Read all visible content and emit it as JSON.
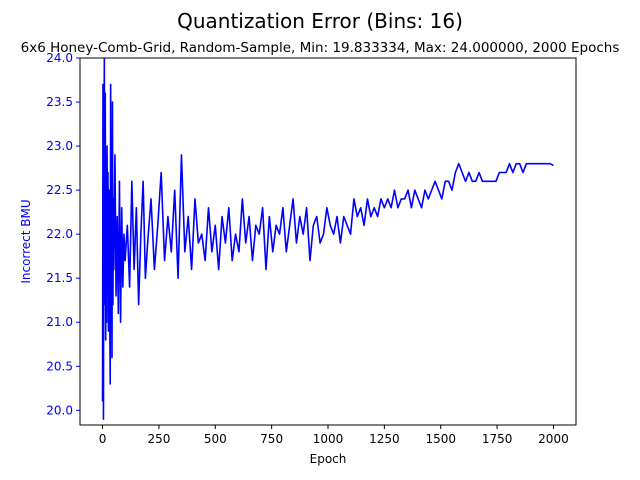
{
  "chart_data": {
    "type": "line",
    "title": "Quantization Error (Bins: 16)",
    "subtitle": "6x6 Honey-Comb-Grid, Random-Sample, Min: 19.833334, Max: 24.000000, 2000 Epochs",
    "xlabel": "Epoch",
    "ylabel": "Incorrect BMU",
    "xlim": [
      -100,
      2100
    ],
    "ylim": [
      19.833334,
      24.0
    ],
    "xticks": [
      0,
      250,
      500,
      750,
      1000,
      1250,
      1500,
      1750,
      2000
    ],
    "xtick_labels": [
      "0",
      "250",
      "500",
      "750",
      "1000",
      "1250",
      "1500",
      "1750",
      "2000"
    ],
    "yticks": [
      20.0,
      20.5,
      21.0,
      21.5,
      22.0,
      22.5,
      23.0,
      23.5,
      24.0
    ],
    "ytick_labels": [
      "20.0",
      "20.5",
      "21.0",
      "21.5",
      "22.0",
      "22.5",
      "23.0",
      "23.5",
      "24.0"
    ],
    "grid": false,
    "series": [
      {
        "color": "#0000ff",
        "x": [
          0,
          2,
          4,
          6,
          8,
          10,
          12,
          14,
          16,
          18,
          20,
          22,
          24,
          26,
          28,
          30,
          32,
          34,
          36,
          38,
          40,
          42,
          44,
          46,
          48,
          50,
          55,
          60,
          65,
          70,
          75,
          80,
          85,
          90,
          95,
          100,
          110,
          120,
          130,
          140,
          150,
          160,
          170,
          180,
          190,
          200,
          215,
          230,
          245,
          260,
          275,
          290,
          305,
          320,
          335,
          350,
          365,
          380,
          395,
          410,
          425,
          440,
          455,
          470,
          485,
          500,
          515,
          530,
          545,
          560,
          575,
          590,
          605,
          620,
          635,
          650,
          665,
          680,
          695,
          710,
          725,
          740,
          755,
          770,
          785,
          800,
          815,
          830,
          845,
          860,
          875,
          890,
          905,
          920,
          935,
          950,
          965,
          980,
          995,
          1010,
          1025,
          1040,
          1055,
          1070,
          1085,
          1100,
          1115,
          1130,
          1145,
          1160,
          1175,
          1190,
          1205,
          1220,
          1235,
          1250,
          1265,
          1280,
          1295,
          1310,
          1325,
          1340,
          1355,
          1370,
          1385,
          1400,
          1415,
          1430,
          1445,
          1460,
          1475,
          1490,
          1505,
          1520,
          1535,
          1550,
          1565,
          1580,
          1595,
          1610,
          1625,
          1640,
          1655,
          1670,
          1685,
          1700,
          1715,
          1730,
          1745,
          1760,
          1775,
          1790,
          1805,
          1820,
          1835,
          1850,
          1865,
          1880,
          1895,
          1910,
          1925,
          1940,
          1955,
          1970,
          1985,
          2000
        ],
        "y": [
          20.1,
          23.7,
          19.9,
          22.5,
          24.0,
          21.2,
          23.6,
          20.8,
          22.9,
          21.0,
          23.0,
          21.4,
          22.7,
          20.9,
          21.8,
          22.5,
          21.1,
          20.3,
          23.7,
          21.5,
          22.8,
          20.6,
          23.5,
          21.2,
          22.4,
          21.6,
          22.9,
          21.3,
          22.2,
          21.1,
          22.6,
          21.0,
          22.3,
          21.4,
          22.0,
          21.7,
          22.1,
          21.4,
          22.6,
          21.6,
          22.3,
          21.2,
          22.0,
          22.6,
          21.5,
          21.9,
          22.4,
          21.6,
          22.1,
          22.7,
          21.7,
          22.2,
          21.8,
          22.5,
          21.5,
          22.9,
          21.8,
          22.2,
          21.6,
          22.4,
          21.9,
          22.0,
          21.7,
          22.3,
          21.8,
          22.1,
          21.6,
          22.2,
          21.9,
          22.3,
          21.7,
          22.0,
          21.8,
          22.4,
          21.9,
          22.2,
          21.7,
          22.1,
          22.0,
          22.3,
          21.6,
          22.2,
          21.8,
          22.1,
          22.0,
          22.3,
          21.8,
          22.1,
          22.4,
          21.9,
          22.2,
          22.0,
          22.3,
          21.7,
          22.1,
          22.2,
          21.9,
          22.0,
          22.3,
          22.1,
          22.0,
          22.2,
          21.9,
          22.2,
          22.1,
          22.0,
          22.4,
          22.2,
          22.3,
          22.1,
          22.4,
          22.2,
          22.3,
          22.2,
          22.4,
          22.3,
          22.4,
          22.3,
          22.5,
          22.3,
          22.4,
          22.4,
          22.5,
          22.3,
          22.5,
          22.4,
          22.3,
          22.5,
          22.4,
          22.5,
          22.6,
          22.5,
          22.4,
          22.6,
          22.6,
          22.5,
          22.7,
          22.8,
          22.7,
          22.6,
          22.7,
          22.6,
          22.6,
          22.7,
          22.6,
          22.6,
          22.6,
          22.6,
          22.6,
          22.7,
          22.7,
          22.7,
          22.8,
          22.7,
          22.8,
          22.8,
          22.7,
          22.8,
          22.8,
          22.8,
          22.8,
          22.8,
          22.8,
          22.8,
          22.8,
          22.78
        ]
      }
    ]
  }
}
